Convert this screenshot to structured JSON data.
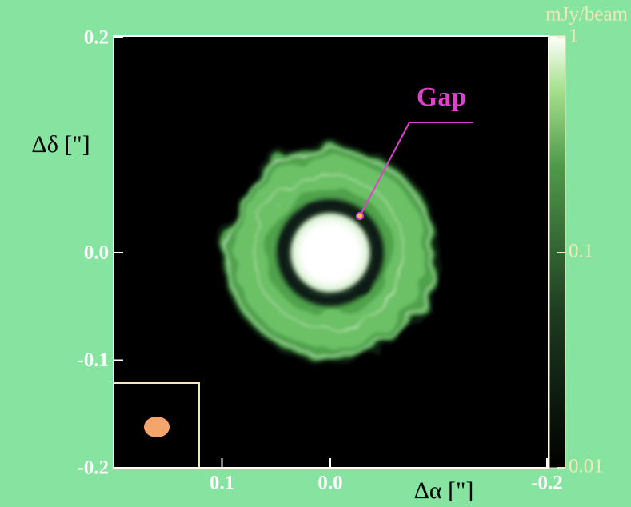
{
  "chart_data": {
    "type": "image",
    "xlabel": "Δα [\"]",
    "ylabel": "Δδ [\"]",
    "xlim": [
      0.2,
      -0.2
    ],
    "ylim": [
      -0.2,
      0.2
    ],
    "xticks": [
      0.1,
      {
        "value": 0,
        "label": "0.0"
      },
      -0.2
    ],
    "yticks": [
      0.2,
      {
        "value": 0,
        "label": "0.0"
      },
      -0.1,
      -0.2
    ],
    "annotation": "Gap",
    "colorbar": {
      "label": "mJy/beam",
      "scale": "log",
      "lim": [
        0.01,
        1
      ],
      "ticks": [
        1,
        0.1,
        0.01
      ]
    }
  }
}
